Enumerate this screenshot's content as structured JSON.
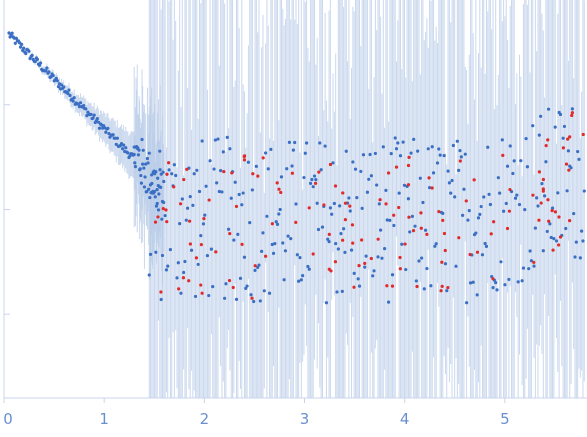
{
  "chart_data": {
    "type": "scatter",
    "title": "",
    "xlabel": "",
    "ylabel": "",
    "xlim": [
      0,
      5.82
    ],
    "ylim": [
      -3.7,
      0.1
    ],
    "x_ticks": [
      0,
      1,
      2,
      3,
      4,
      5
    ],
    "x_tick_labels": [
      "0",
      "1",
      "2",
      "3",
      "4",
      "5"
    ],
    "y_ticks": [
      -0.9,
      -1.9,
      -2.9
    ],
    "grid": false,
    "legend": "none",
    "colors": {
      "main": "#3a6fc4",
      "outlier": "#e02b2b",
      "error": "#b9cce8",
      "axis": "#c8d4ec",
      "tick_text": "#6a8fd0"
    },
    "series": [
      {
        "color": "#3a6fc4",
        "description_points": [
          [
            0.05,
            -0.2,
            0.03
          ],
          [
            0.1,
            -0.2,
            0.03
          ],
          [
            0.15,
            -0.23,
            0.03
          ],
          [
            0.2,
            -0.22,
            0.03
          ],
          [
            0.25,
            -0.26,
            0.03
          ],
          [
            0.3,
            -0.28,
            0.03
          ],
          [
            0.35,
            -0.3,
            0.04
          ],
          [
            0.4,
            -0.33,
            0.04
          ],
          [
            0.45,
            -0.38,
            0.04
          ],
          [
            0.5,
            -0.42,
            0.04
          ],
          [
            0.55,
            -0.48,
            0.05
          ],
          [
            0.6,
            -0.52,
            0.05
          ],
          [
            0.65,
            -0.55,
            0.05
          ],
          [
            0.7,
            -0.6,
            0.06
          ],
          [
            0.75,
            -0.68,
            0.07
          ],
          [
            0.8,
            -0.75,
            0.08
          ],
          [
            0.85,
            -0.78,
            0.09
          ],
          [
            0.9,
            -0.88,
            0.1
          ],
          [
            0.95,
            -0.95,
            0.12
          ],
          [
            1.0,
            -1.02,
            0.14
          ],
          [
            1.05,
            -1.1,
            0.16
          ],
          [
            1.1,
            -1.15,
            0.18
          ],
          [
            1.15,
            -1.2,
            0.2
          ],
          [
            1.2,
            -1.25,
            0.25
          ],
          [
            1.25,
            -1.3,
            0.3
          ],
          [
            1.3,
            -1.4,
            0.35
          ],
          [
            1.35,
            -1.45,
            0.4
          ],
          [
            1.4,
            -1.5,
            0.45
          ],
          [
            1.45,
            -1.55,
            0.6
          ],
          [
            1.5,
            -1.8,
            0.8
          ]
        ]
      },
      {
        "color": "#e02b2b",
        "description_points": []
      }
    ]
  }
}
